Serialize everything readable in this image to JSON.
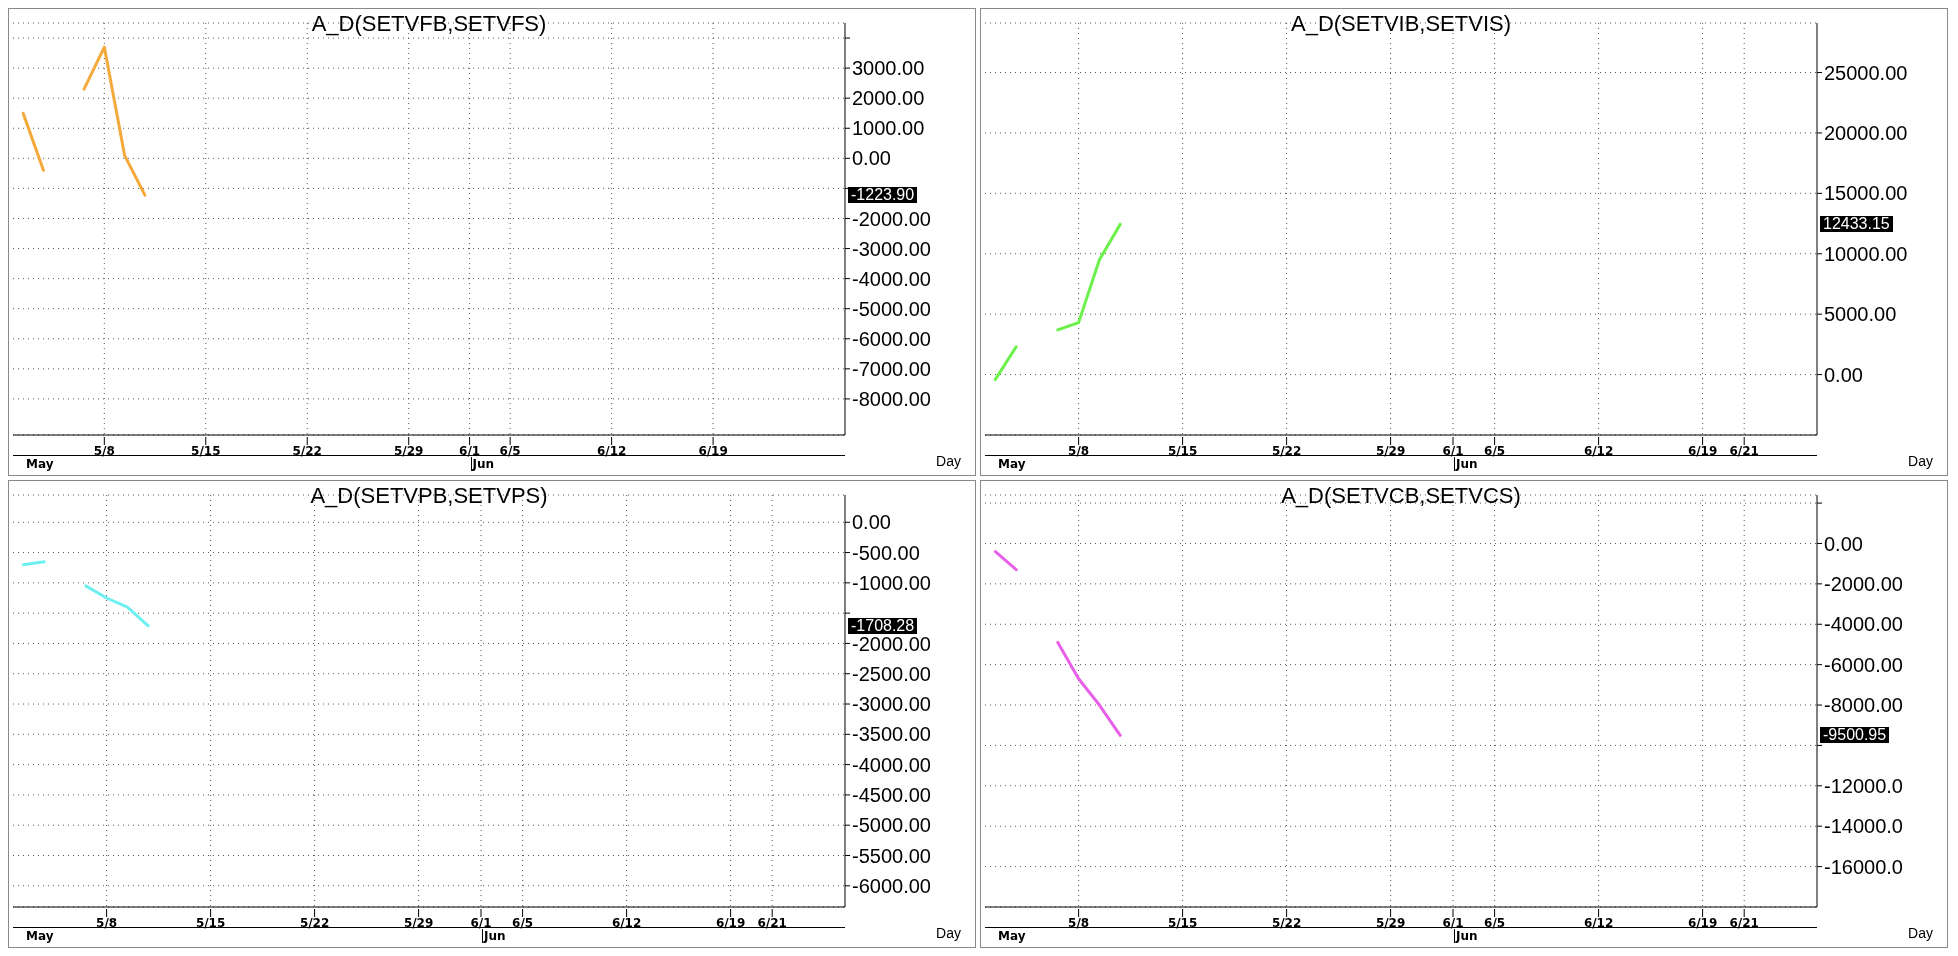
{
  "chart_data": [
    {
      "type": "line",
      "title": "A_D(SETVFB,SETVFS)",
      "xlabel": "Day",
      "categories": [
        null,
        null,
        null,
        null,
        "5/8",
        null,
        null,
        null,
        null,
        "5/15",
        null,
        null,
        null,
        null,
        "5/22",
        null,
        null,
        null,
        null,
        "5/29",
        null,
        null,
        "6/1",
        null,
        "6/5",
        null,
        null,
        null,
        null,
        "6/12",
        null,
        null,
        null,
        null,
        "6/19",
        null,
        null,
        null,
        null,
        null,
        null
      ],
      "series": [
        {
          "color": "#f4a93a",
          "values": [
            1500,
            -400,
            null,
            2300,
            3700,
            100,
            -1223.9,
            null,
            null,
            null,
            null,
            null,
            null,
            null,
            null,
            null,
            null,
            null,
            null,
            null,
            null,
            null,
            null,
            null,
            null,
            null,
            null,
            null,
            null,
            null,
            null,
            null,
            null,
            null,
            null,
            null,
            null,
            null,
            null,
            null,
            null
          ]
        }
      ],
      "ylim": [
        -9200,
        4500
      ],
      "yticks": [
        {
          "value": 4000,
          "label": null
        },
        {
          "value": 3000,
          "label": "3000.00"
        },
        {
          "value": 2000,
          "label": "2000.00"
        },
        {
          "value": 1000,
          "label": "1000.00"
        },
        {
          "value": 0,
          "label": "0.00"
        },
        {
          "value": -1000,
          "label": null
        },
        {
          "value": -2000,
          "label": "-2000.00"
        },
        {
          "value": -3000,
          "label": "-3000.00"
        },
        {
          "value": -4000,
          "label": "-4000.00"
        },
        {
          "value": -5000,
          "label": "-5000.00"
        },
        {
          "value": -6000,
          "label": "-6000.00"
        },
        {
          "value": -7000,
          "label": "-7000.00"
        },
        {
          "value": -8000,
          "label": "-8000.00"
        }
      ],
      "grid": true,
      "legend": false,
      "annotations": [
        "May",
        "Jun",
        "-1223.90"
      ]
    },
    {
      "type": "line",
      "title": "A_D(SETVIB,SETVIS)",
      "xlabel": "Day",
      "categories": [
        null,
        null,
        null,
        null,
        "5/8",
        null,
        null,
        null,
        null,
        "5/15",
        null,
        null,
        null,
        null,
        "5/22",
        null,
        null,
        null,
        null,
        "5/29",
        null,
        null,
        "6/1",
        null,
        "6/5",
        null,
        null,
        null,
        null,
        "6/12",
        null,
        null,
        null,
        null,
        "6/19",
        null,
        "6/21",
        null,
        null,
        null
      ],
      "series": [
        {
          "color": "#6cf04a",
          "values": [
            -400,
            2300,
            null,
            3700,
            4300,
            9500,
            12433.15,
            null,
            null,
            null,
            null,
            null,
            null,
            null,
            null,
            null,
            null,
            null,
            null,
            null,
            null,
            null,
            null,
            null,
            null,
            null,
            null,
            null,
            null,
            null,
            null,
            null,
            null,
            null,
            null,
            null,
            null,
            null,
            null,
            null
          ]
        }
      ],
      "ylim": [
        -5000,
        29100
      ],
      "yticks": [
        {
          "value": 25000,
          "label": "25000.00"
        },
        {
          "value": 20000,
          "label": "20000.00"
        },
        {
          "value": 15000,
          "label": "15000.00"
        },
        {
          "value": 10000,
          "label": "10000.00"
        },
        {
          "value": 5000,
          "label": "5000.00"
        },
        {
          "value": 0,
          "label": "0.00"
        }
      ],
      "grid": true,
      "legend": false,
      "annotations": [
        "May",
        "Jun",
        "12433.15"
      ]
    },
    {
      "type": "line",
      "title": "A_D(SETVPB,SETVPS)",
      "xlabel": "Day",
      "categories": [
        null,
        null,
        null,
        null,
        "5/8",
        null,
        null,
        null,
        null,
        "5/15",
        null,
        null,
        null,
        null,
        "5/22",
        null,
        null,
        null,
        null,
        "5/29",
        null,
        null,
        "6/1",
        null,
        "6/5",
        null,
        null,
        null,
        null,
        "6/12",
        null,
        null,
        null,
        null,
        "6/19",
        null,
        "6/21",
        null,
        null,
        null
      ],
      "series": [
        {
          "color": "#6ff0f0",
          "values": [
            -700,
            -650,
            null,
            -1050,
            -1250,
            -1400,
            -1708.28,
            null,
            null,
            null,
            null,
            null,
            null,
            null,
            null,
            null,
            null,
            null,
            null,
            null,
            null,
            null,
            null,
            null,
            null,
            null,
            null,
            null,
            null,
            null,
            null,
            null,
            null,
            null,
            null,
            null,
            null,
            null,
            null,
            null
          ]
        }
      ],
      "ylim": [
        -6350,
        450
      ],
      "yticks": [
        {
          "value": 0,
          "label": "0.00"
        },
        {
          "value": -500,
          "label": "-500.00"
        },
        {
          "value": -1000,
          "label": "-1000.00"
        },
        {
          "value": -1500,
          "label": null
        },
        {
          "value": -2000,
          "label": "-2000.00"
        },
        {
          "value": -2500,
          "label": "-2500.00"
        },
        {
          "value": -3000,
          "label": "-3000.00"
        },
        {
          "value": -3500,
          "label": "-3500.00"
        },
        {
          "value": -4000,
          "label": "-4000.00"
        },
        {
          "value": -4500,
          "label": "-4500.00"
        },
        {
          "value": -5000,
          "label": "-5000.00"
        },
        {
          "value": -5500,
          "label": "-5500.00"
        },
        {
          "value": -6000,
          "label": "-6000.00"
        }
      ],
      "grid": true,
      "legend": false,
      "annotations": [
        "May",
        "Jun",
        "-1708.28"
      ]
    },
    {
      "type": "line",
      "title": "A_D(SETVCB,SETVCS)",
      "xlabel": "Day",
      "categories": [
        null,
        null,
        null,
        null,
        "5/8",
        null,
        null,
        null,
        null,
        "5/15",
        null,
        null,
        null,
        null,
        "5/22",
        null,
        null,
        null,
        null,
        "5/29",
        null,
        null,
        "6/1",
        null,
        "6/5",
        null,
        null,
        null,
        null,
        "6/12",
        null,
        null,
        null,
        null,
        "6/19",
        null,
        "6/21",
        null,
        null,
        null
      ],
      "series": [
        {
          "color": "#e860e8",
          "values": [
            -400,
            -1300,
            null,
            -4900,
            -6700,
            -8000,
            -9500.95,
            null,
            null,
            null,
            null,
            null,
            null,
            null,
            null,
            null,
            null,
            null,
            null,
            null,
            null,
            null,
            null,
            null,
            null,
            null,
            null,
            null,
            null,
            null,
            null,
            null,
            null,
            null,
            null,
            null,
            null,
            null,
            null,
            null
          ]
        }
      ],
      "ylim": [
        -18000,
        2400
      ],
      "yticks": [
        {
          "value": 2000,
          "label": null
        },
        {
          "value": 0,
          "label": "0.00"
        },
        {
          "value": -2000,
          "label": "-2000.00"
        },
        {
          "value": -4000,
          "label": "-4000.00"
        },
        {
          "value": -6000,
          "label": "-6000.00"
        },
        {
          "value": -8000,
          "label": "-8000.00"
        },
        {
          "value": -10000,
          "label": null
        },
        {
          "value": -12000,
          "label": "-12000.0"
        },
        {
          "value": -14000,
          "label": "-14000.0"
        },
        {
          "value": -16000,
          "label": "-16000.0"
        }
      ],
      "grid": true,
      "legend": false,
      "annotations": [
        "May",
        "Jun",
        "-9500.95"
      ]
    }
  ]
}
